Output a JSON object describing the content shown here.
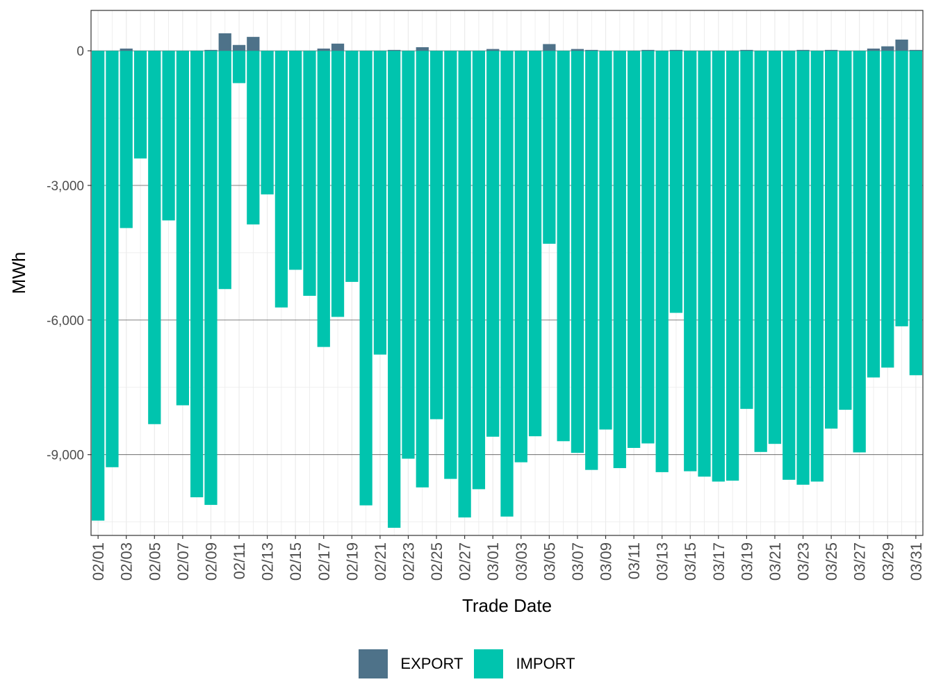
{
  "chart_data": {
    "type": "bar",
    "stacked": true,
    "xlabel": "Trade Date",
    "ylabel": "MWh",
    "ylim": [
      -10800,
      900
    ],
    "yticks": [
      0,
      -3000,
      -6000,
      -9000
    ],
    "ytick_labels": [
      "0",
      "-3,000",
      "-6,000",
      "-9,000"
    ],
    "categories": [
      "02/01",
      "02/02",
      "02/03",
      "02/04",
      "02/05",
      "02/06",
      "02/07",
      "02/08",
      "02/09",
      "02/10",
      "02/11",
      "02/12",
      "02/13",
      "02/14",
      "02/15",
      "02/16",
      "02/17",
      "02/18",
      "02/19",
      "02/20",
      "02/21",
      "02/22",
      "02/23",
      "02/24",
      "02/25",
      "02/26",
      "02/27",
      "02/28",
      "03/01",
      "03/02",
      "03/03",
      "03/04",
      "03/05",
      "03/06",
      "03/07",
      "03/08",
      "03/09",
      "03/10",
      "03/11",
      "03/12",
      "03/13",
      "03/14",
      "03/15",
      "03/16",
      "03/17",
      "03/18",
      "03/19",
      "03/20",
      "03/21",
      "03/22",
      "03/23",
      "03/24",
      "03/25",
      "03/26",
      "03/27",
      "03/28",
      "03/29",
      "03/30",
      "03/31"
    ],
    "xtick_labels": [
      "02/01",
      "02/03",
      "02/05",
      "02/07",
      "02/09",
      "02/11",
      "02/13",
      "02/15",
      "02/17",
      "02/19",
      "02/21",
      "02/23",
      "02/25",
      "02/27",
      "03/01",
      "03/03",
      "03/05",
      "03/07",
      "03/09",
      "03/11",
      "03/13",
      "03/15",
      "03/17",
      "03/19",
      "03/21",
      "03/23",
      "03/25",
      "03/27",
      "03/29",
      "03/31"
    ],
    "series": [
      {
        "name": "EXPORT",
        "color": "#4e7289",
        "values": [
          0,
          0,
          50,
          0,
          0,
          0,
          0,
          0,
          20,
          390,
          130,
          310,
          0,
          0,
          0,
          0,
          50,
          160,
          0,
          0,
          0,
          20,
          0,
          80,
          0,
          0,
          0,
          0,
          40,
          0,
          0,
          0,
          150,
          0,
          40,
          20,
          0,
          0,
          0,
          20,
          0,
          20,
          0,
          0,
          0,
          0,
          20,
          0,
          0,
          0,
          20,
          0,
          20,
          0,
          0,
          50,
          100,
          250,
          20
        ]
      },
      {
        "name": "IMPORT",
        "color": "#00c4ae",
        "values": [
          -10470,
          -9280,
          -3950,
          -2400,
          -8320,
          -3780,
          -7900,
          -9950,
          -10120,
          -5310,
          -720,
          -3870,
          -3200,
          -5720,
          -4880,
          -5460,
          -6600,
          -5930,
          -5150,
          -10130,
          -6770,
          -10630,
          -9090,
          -9730,
          -8210,
          -9540,
          -10400,
          -9770,
          -8600,
          -10380,
          -9170,
          -8590,
          -4300,
          -8700,
          -8960,
          -9340,
          -8440,
          -9300,
          -8850,
          -8750,
          -9390,
          -5840,
          -9370,
          -9490,
          -9600,
          -9580,
          -7980,
          -8940,
          -8760,
          -9560,
          -9670,
          -9600,
          -8420,
          -8000,
          -8950,
          -7280,
          -7060,
          -6140,
          -7230
        ]
      }
    ],
    "grid": true,
    "legend_position": "bottom"
  }
}
